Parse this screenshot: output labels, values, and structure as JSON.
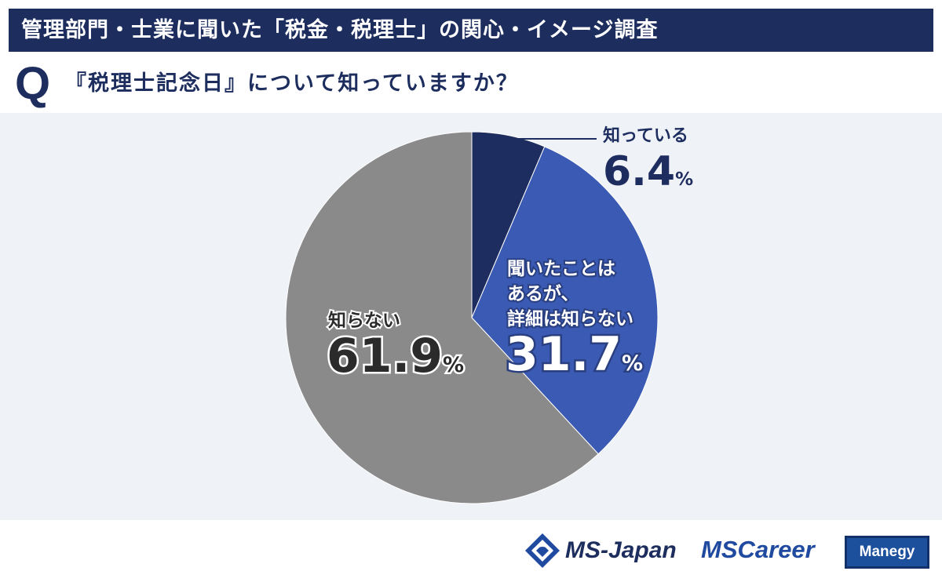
{
  "header": {
    "banner_title": "管理部門・士業に聞いた「税金・税理士」の関心・イメージ調査",
    "question_mark": "Q",
    "question_text": "『税理士記念日』について知っていますか？"
  },
  "chart_data": {
    "type": "pie",
    "title": "『税理士記念日』について知っていますか？",
    "start_angle_deg": 0,
    "direction": "clockwise",
    "slices": [
      {
        "label": "知っている",
        "label_lines": [
          "知っている"
        ],
        "value": 6.4,
        "value_text": "6.4",
        "unit": "%",
        "color": "#1e2d5f"
      },
      {
        "label": "聞いたことはあるが、詳細は知らない",
        "label_lines": [
          "聞いたことは",
          "あるが、",
          "詳細は知らない"
        ],
        "value": 31.7,
        "value_text": "31.7",
        "unit": "%",
        "color": "#3a5ab3"
      },
      {
        "label": "知らない",
        "label_lines": [
          "知らない"
        ],
        "value": 61.9,
        "value_text": "61.9",
        "unit": "%",
        "color": "#8a8a8a"
      }
    ]
  },
  "colors": {
    "banner_bg": "#1c2d5e",
    "chart_bg": "#eff2f7",
    "accent_blue": "#3a5ab3",
    "dark_navy": "#1e2d5f",
    "gray": "#8a8a8a"
  },
  "footer": {
    "logo_ms_japan": "MS-Japan",
    "logo_ms_career": "MSCareer",
    "logo_manegy": "Manegy",
    "logo_icon": "ms-japan-emblem-icon"
  }
}
